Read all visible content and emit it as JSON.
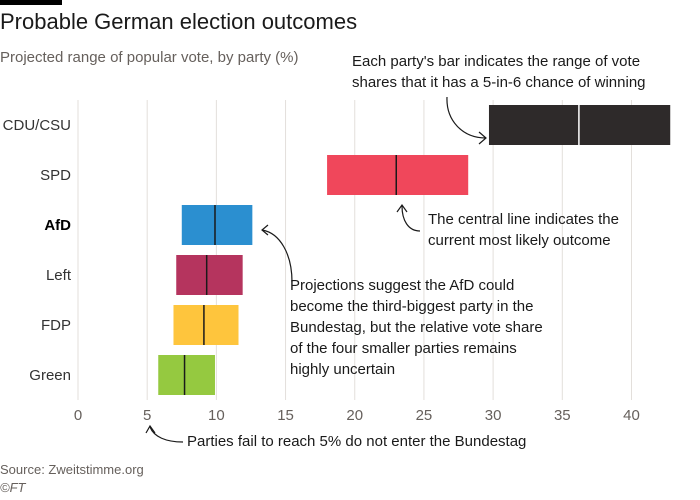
{
  "title": "Probable German election outcomes",
  "subtitle": "Projected range of popular vote, by party (%)",
  "annotations": {
    "range": [
      "Each party's bar indicates the range of vote",
      "shares that it has a 5-in-6 chance of winning"
    ],
    "central": [
      "The central line indicates the",
      "current most likely outcome"
    ],
    "afd": [
      "Projections suggest the AfD could",
      "become the third-biggest party in the",
      "Bundestag, but the relative vote share",
      "of the four smaller parties remains",
      "highly uncertain"
    ],
    "threshold": "Parties fail to reach 5% do not enter the Bundestag"
  },
  "source": "Source: Zweitstimme.org",
  "credit": "©FT",
  "chart_data": {
    "type": "range-bar",
    "orientation": "horizontal",
    "xlim": [
      0,
      43
    ],
    "xticks": [
      0,
      5,
      10,
      15,
      20,
      25,
      30,
      35,
      40
    ],
    "grid": true,
    "highlighted_category": "AfD",
    "categories": [
      "CDU/CSU",
      "SPD",
      "AfD",
      "Left",
      "FDP",
      "Green"
    ],
    "series": [
      {
        "category": "CDU/CSU",
        "low": 29.7,
        "high": 42.8,
        "central": 36.2,
        "color": "#2e2a2a"
      },
      {
        "category": "SPD",
        "low": 18.0,
        "high": 28.2,
        "central": 23.0,
        "color": "#f0475b"
      },
      {
        "category": "AfD",
        "low": 7.5,
        "high": 12.6,
        "central": 9.9,
        "color": "#2b8fd0"
      },
      {
        "category": "Left",
        "low": 7.1,
        "high": 11.9,
        "central": 9.3,
        "color": "#b5345e"
      },
      {
        "category": "FDP",
        "low": 6.9,
        "high": 11.6,
        "central": 9.1,
        "color": "#fec53d"
      },
      {
        "category": "Green",
        "low": 5.8,
        "high": 9.9,
        "central": 7.7,
        "color": "#95c940"
      }
    ]
  }
}
